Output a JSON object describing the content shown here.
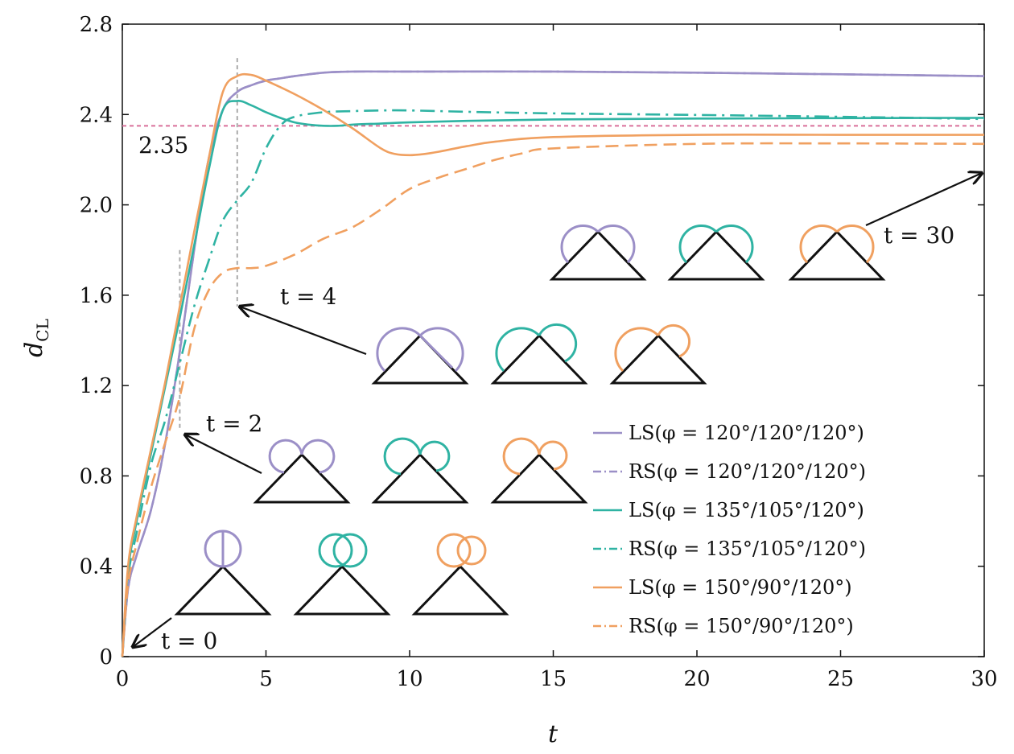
{
  "chart_data": {
    "type": "line",
    "xlabel": "t",
    "ylabel_main": "d",
    "ylabel_sub": "CL",
    "xlim": [
      0,
      30
    ],
    "ylim": [
      0,
      2.8
    ],
    "xticks": [
      0,
      5,
      10,
      15,
      20,
      25,
      30
    ],
    "yticks": [
      0,
      0.4,
      0.8,
      1.2,
      1.6,
      2.0,
      2.4,
      2.8
    ],
    "xtick_labels": [
      "0",
      "5",
      "10",
      "15",
      "20",
      "25",
      "30"
    ],
    "ytick_labels": [
      "0",
      "0.4",
      "0.8",
      "1.2",
      "1.6",
      "2.0",
      "2.4",
      "2.8"
    ],
    "grid": false,
    "legend_position": "bottom-right",
    "reference_line": {
      "y": 2.35,
      "label": "2.35",
      "color": "#d9709a"
    },
    "time_markers": [
      {
        "t": 2,
        "ymin": 1.0,
        "ymax": 1.8
      },
      {
        "t": 4,
        "ymin": 1.55,
        "ymax": 2.65
      }
    ],
    "annotations": [
      {
        "name": "t0",
        "label": "t = 0"
      },
      {
        "name": "t2",
        "label": "t = 2"
      },
      {
        "name": "t4",
        "label": "t = 4"
      },
      {
        "name": "t30",
        "label": "t = 30"
      }
    ],
    "series": [
      {
        "name": "LS(φ = 120°/120°/120°)",
        "color": "#9b8fc7",
        "dash": "solid",
        "x": [
          0,
          0.2,
          0.5,
          1,
          1.5,
          2,
          2.5,
          3,
          3.5,
          4,
          4.5,
          5,
          5.5,
          6,
          7,
          8,
          10,
          15,
          20,
          25,
          30
        ],
        "y": [
          0,
          0.3,
          0.45,
          0.65,
          0.95,
          1.35,
          1.8,
          2.2,
          2.42,
          2.5,
          2.53,
          2.55,
          2.56,
          2.57,
          2.585,
          2.59,
          2.59,
          2.59,
          2.585,
          2.578,
          2.57
        ]
      },
      {
        "name": "RS(φ = 120°/120°/120°)",
        "color": "#9b8fc7",
        "dash": "dashdot",
        "x": [
          0,
          0.2,
          0.5,
          1,
          1.5,
          2,
          2.5,
          3,
          3.5,
          4,
          4.5,
          5,
          5.5,
          6,
          7,
          8,
          10,
          15,
          20,
          25,
          30
        ],
        "y": [
          0,
          0.3,
          0.45,
          0.65,
          0.95,
          1.35,
          1.8,
          2.2,
          2.42,
          2.5,
          2.53,
          2.55,
          2.56,
          2.57,
          2.585,
          2.59,
          2.59,
          2.59,
          2.585,
          2.578,
          2.57
        ]
      },
      {
        "name": "LS(φ = 135°/105°/120°)",
        "color": "#2fb3a3",
        "dash": "solid",
        "x": [
          0,
          0.2,
          0.5,
          1,
          1.5,
          2,
          2.5,
          3,
          3.5,
          4,
          4.5,
          5,
          5.5,
          6,
          6.5,
          7,
          7.5,
          8,
          9,
          10,
          12,
          15,
          20,
          25,
          30
        ],
        "y": [
          0,
          0.38,
          0.6,
          0.9,
          1.2,
          1.5,
          1.82,
          2.15,
          2.42,
          2.46,
          2.44,
          2.41,
          2.385,
          2.365,
          2.355,
          2.35,
          2.35,
          2.355,
          2.36,
          2.365,
          2.372,
          2.378,
          2.382,
          2.384,
          2.385
        ]
      },
      {
        "name": "RS(φ = 135°/105°/120°)",
        "color": "#2fb3a3",
        "dash": "dashdot",
        "x": [
          0,
          0.2,
          0.5,
          1,
          1.5,
          2,
          2.5,
          3,
          3.5,
          4,
          4.5,
          5,
          5.5,
          6,
          7,
          8,
          9,
          10,
          12,
          15,
          20,
          25,
          30
        ],
        "y": [
          0,
          0.35,
          0.55,
          0.85,
          1.05,
          1.3,
          1.55,
          1.75,
          1.93,
          2.02,
          2.1,
          2.25,
          2.35,
          2.39,
          2.41,
          2.415,
          2.418,
          2.418,
          2.412,
          2.405,
          2.398,
          2.39,
          2.38
        ]
      },
      {
        "name": "LS(φ = 150°/90°/120°)",
        "color": "#f0a060",
        "dash": "solid",
        "x": [
          0,
          0.2,
          0.5,
          1,
          1.5,
          2,
          2.5,
          3,
          3.5,
          4,
          4.5,
          5,
          6,
          7,
          8,
          9,
          9.5,
          10,
          10.5,
          11,
          12,
          13,
          15,
          20,
          25,
          30
        ],
        "y": [
          0,
          0.4,
          0.62,
          0.92,
          1.22,
          1.55,
          1.88,
          2.2,
          2.5,
          2.57,
          2.575,
          2.55,
          2.49,
          2.42,
          2.34,
          2.25,
          2.225,
          2.22,
          2.225,
          2.235,
          2.26,
          2.28,
          2.3,
          2.31,
          2.31,
          2.31
        ]
      },
      {
        "name": "RS(φ = 150°/90°/120°)",
        "color": "#f0a060",
        "dash": "dashdot",
        "x": [
          0,
          0.2,
          0.5,
          1,
          1.5,
          2,
          2.5,
          3,
          3.5,
          4,
          4.5,
          5,
          6,
          7,
          8,
          9,
          10,
          11,
          12,
          13,
          14,
          15,
          20,
          25,
          30
        ],
        "y": [
          0,
          0.32,
          0.5,
          0.75,
          0.95,
          1.15,
          1.45,
          1.62,
          1.7,
          1.72,
          1.72,
          1.73,
          1.78,
          1.85,
          1.9,
          1.98,
          2.07,
          2.12,
          2.16,
          2.2,
          2.23,
          2.25,
          2.27,
          2.272,
          2.27
        ]
      }
    ]
  }
}
